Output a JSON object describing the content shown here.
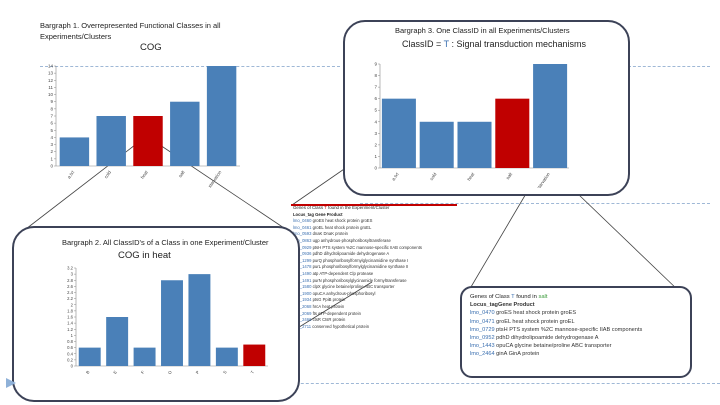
{
  "colors": {
    "bar": "#4a80b8",
    "highlight": "#c00000",
    "frame": "#3c4257",
    "guide": "#9fb8d6",
    "link": "#3a6fb0",
    "green": "#3a9a3a"
  },
  "chart1": {
    "heading_line1": "Bargraph 1. Overrepresented Functional Classes in all",
    "heading_line2": "Experiments/Clusters",
    "chart_title": "COG"
  },
  "chart2": {
    "heading": "Bargraph 2. All ClassID's of a Class in one Experiment/Cluster",
    "chart_title": "COG in heat"
  },
  "chart3": {
    "heading": "Bargraph 3. One ClassID in all Experiments/Clusters",
    "chart_title_prefix": "ClassID = ",
    "chart_title_id": "T",
    "chart_title_suffix": " : Signal transduction mechanisms"
  },
  "chart_data": [
    {
      "type": "bar",
      "title": "COG",
      "categories": [
        "a.txt",
        "cold",
        "heat",
        "salt",
        "starvation"
      ],
      "values": [
        4,
        7,
        7,
        9,
        14
      ],
      "highlight_index": 2,
      "ylim": [
        0,
        14
      ],
      "yticks": [
        0,
        1,
        2,
        3,
        4,
        5,
        6,
        7,
        8,
        9,
        10,
        11,
        12,
        13,
        14
      ]
    },
    {
      "type": "bar",
      "title": "COG in heat",
      "categories": [
        "B",
        "E",
        "F",
        "O",
        "P",
        "S",
        "T"
      ],
      "values": [
        0.6,
        1.6,
        0.6,
        2.8,
        3.0,
        0.6,
        0.7
      ],
      "highlight_index": 6,
      "ylim": [
        0,
        3.2
      ],
      "yticks": [
        "0",
        "0.2",
        "0.4",
        "0.6",
        "0.8",
        "1",
        "1.2",
        "1.4",
        "1.6",
        "1.8",
        "2",
        "2.2",
        "2.4",
        "2.6",
        "2.8",
        "3",
        "3.2"
      ]
    },
    {
      "type": "bar",
      "title": "ClassID = T : Signal transduction mechanisms",
      "categories": [
        "a.txt",
        "cold",
        "heat",
        "salt",
        "starvation"
      ],
      "values": [
        6,
        4,
        4,
        6,
        9
      ],
      "highlight_index": 3,
      "ylim": [
        0,
        9
      ],
      "yticks": [
        0,
        1,
        2,
        3,
        4,
        5,
        6,
        7,
        8,
        9
      ]
    }
  ],
  "gene_table_all": {
    "caption_prefix": "Genes of Class ",
    "caption_class": "T",
    "caption_suffix": " found in the Experiment/Cluster",
    "header": "Locus_tag Gene  Product",
    "rows": [
      {
        "id": "lmo_0460",
        "text": "groES  heat shock protein groES"
      },
      {
        "id": "lmo_0461",
        "text": "groEL  heat shock protein groEL"
      },
      {
        "id": "lmo_0593",
        "text": "dnaK   DnaK protein"
      },
      {
        "id": "lmo_0863",
        "text": "ugp    anhydrous-phosphoribosyltransferase"
      },
      {
        "id": "lmo_0929",
        "text": "ptsH   PTS system %2C mannose-specific IIAB components"
      },
      {
        "id": "lmo_0936",
        "text": "pdhD   dihydrolipoamide dehydrogenase A"
      },
      {
        "id": "lmo_1299",
        "text": "purQ   phosphoribosylformylglycinamidine synthase I"
      },
      {
        "id": "lmo_1478",
        "text": "purL   phosphoribosylformylglycinamidine synthase II"
      },
      {
        "id": "lmo_1490",
        "text": "atp    ATP-dependent Clp protease"
      },
      {
        "id": "lmo_1491",
        "text": "purN   phosphoribosylglycinamide formyltransferase"
      },
      {
        "id": "lmo_1580",
        "text": "clpX   glycine betaine/proline ABC transporter"
      },
      {
        "id": "lmo_1900",
        "text": "opuCA  anhydrous-phosphoribosyl"
      },
      {
        "id": "lmo_1934",
        "text": "ptsG   PpiB protein"
      },
      {
        "id": "lmo_2068",
        "text": "hrcA   heat protein"
      },
      {
        "id": "lmo_2069",
        "text": "fts    ATP-dependent protein"
      },
      {
        "id": "lmo_2466",
        "text": "ctsR   CtsR protein"
      },
      {
        "id": "lmo_2711",
        "text": "       conserved hypothetical protein"
      }
    ]
  },
  "gene_table_class": {
    "caption_prefix": "Genes of Class ",
    "caption_class": "T",
    "caption_suffix": " found in ",
    "caption_exp": "salt",
    "header": "Locus_tagGene   Product",
    "rows": [
      {
        "id": "lmo_0470",
        "text": "groES  heat shock protein groES"
      },
      {
        "id": "lmo_0471",
        "text": "groEL  heat shock protein groEL"
      },
      {
        "id": "lmo_0729",
        "text": "ptsH  PTS system %2C mannose-specific IIAB components"
      },
      {
        "id": "lmo_0952",
        "text": "pdhD  dihydrolipoamide dehydrogenase A"
      },
      {
        "id": "lmo_1443",
        "text": "opuCA  glycine betaine/proline ABC transporter"
      },
      {
        "id": "lmo_2464",
        "text": "ginA   GinA protein"
      }
    ]
  },
  "nav": {
    "play_icon": "play-triangle-icon"
  }
}
